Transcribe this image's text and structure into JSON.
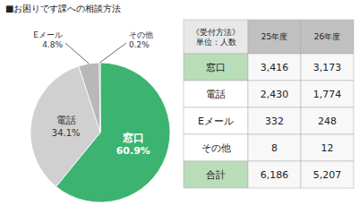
{
  "chart_data": [
    {
      "type": "pie",
      "title": "■お困りです課への相談方法",
      "categories": [
        "窓口",
        "電話",
        "Eメール",
        "その他"
      ],
      "values": [
        60.9,
        34.1,
        4.8,
        0.2
      ],
      "value_labels": [
        "60.9%",
        "34.1%",
        "4.8%",
        "0.2%"
      ],
      "colors": [
        "#3cb371",
        "#d0d0d0",
        "#b8b8b8",
        "#909090"
      ],
      "data_labels": true
    },
    {
      "type": "table",
      "columns": [
        "《受付方法》\n単位：人数",
        "25年度",
        "26年度"
      ],
      "rows": [
        [
          "窓口",
          "3,416",
          "3,173"
        ],
        [
          "電話",
          "2,430",
          "1,774"
        ],
        [
          "Eメール",
          "332",
          "248"
        ],
        [
          "その他",
          "8",
          "12"
        ],
        [
          "合計",
          "6,186",
          "5,207"
        ]
      ],
      "colors": [
        "#b8ddb8",
        "#ffffff",
        "#ffffff",
        "#ffffff",
        "#b8ddb8"
      ]
    }
  ]
}
